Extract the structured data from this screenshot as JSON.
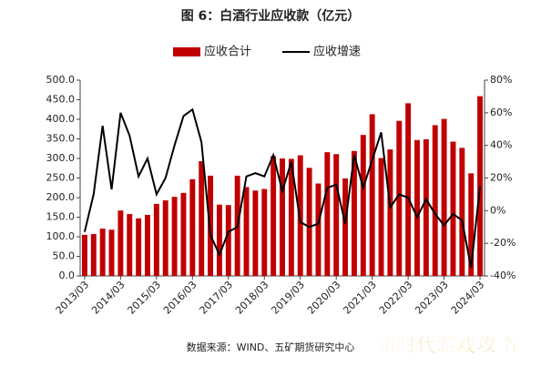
{
  "chart_data": {
    "type": "bar-line",
    "title": "图 6：白酒行业应收款（亿元）",
    "source": "数据来源：WIND、五矿期货研究中心",
    "watermark": "新时代游戏攻略",
    "categories": [
      "2013/03",
      null,
      null,
      null,
      "2014/03",
      null,
      null,
      null,
      "2015/03",
      null,
      null,
      null,
      "2016/03",
      null,
      null,
      null,
      "2017/03",
      null,
      null,
      null,
      "2018/03",
      null,
      null,
      null,
      "2019/03",
      null,
      null,
      null,
      "2020/03",
      null,
      null,
      null,
      "2021/03",
      null,
      null,
      null,
      "2022/03",
      null,
      null,
      null,
      "2023/03",
      null,
      null,
      null,
      "2024/03"
    ],
    "series": [
      {
        "name": "应收合计",
        "type": "bar",
        "color": "#c00000",
        "values": [
          105,
          107,
          121,
          118,
          167,
          158,
          147,
          156,
          184,
          193,
          202,
          212,
          247,
          293,
          256,
          182,
          181,
          256,
          227,
          218,
          222,
          306,
          300,
          299,
          308,
          276,
          236,
          316,
          311,
          249,
          319,
          360,
          413,
          301,
          323,
          396,
          441,
          347,
          349,
          385,
          401,
          343,
          327,
          262,
          459
        ]
      },
      {
        "name": "应收增速",
        "type": "line",
        "axis": "y2",
        "color": "#000000",
        "values": [
          -13,
          10,
          52,
          13,
          60,
          46,
          21,
          32,
          10,
          20,
          40,
          58,
          62,
          42,
          -15,
          -27,
          -13,
          -10,
          21,
          23,
          21,
          34,
          12,
          30,
          -7,
          -10,
          -8,
          14,
          16,
          -8,
          34,
          14,
          31,
          48,
          2,
          10,
          8,
          -4,
          7,
          -2,
          -9,
          -2,
          -6,
          -35,
          15
        ]
      }
    ],
    "ylim": [
      0,
      500
    ],
    "yticks": [
      {
        "value": 0,
        "label": "0.0"
      },
      {
        "value": 50,
        "label": "50.0"
      },
      {
        "value": 100,
        "label": "100.0"
      },
      {
        "value": 150,
        "label": "150.0"
      },
      {
        "value": 200,
        "label": "200.0"
      },
      {
        "value": 250,
        "label": "250.0"
      },
      {
        "value": 300,
        "label": "300.0"
      },
      {
        "value": 350,
        "label": "350.0"
      },
      {
        "value": 400,
        "label": "400.0"
      },
      {
        "value": 450,
        "label": "450.0"
      },
      {
        "value": 500,
        "label": "500.0"
      }
    ],
    "y2lim": [
      -40,
      80
    ],
    "y2ticks": [
      {
        "value": -40,
        "label": "-40%"
      },
      {
        "value": -20,
        "label": "-20%"
      },
      {
        "value": 0,
        "label": "0%"
      },
      {
        "value": 20,
        "label": "20%"
      },
      {
        "value": 40,
        "label": "40%"
      },
      {
        "value": 60,
        "label": "60%"
      },
      {
        "value": 80,
        "label": "80%"
      }
    ]
  }
}
